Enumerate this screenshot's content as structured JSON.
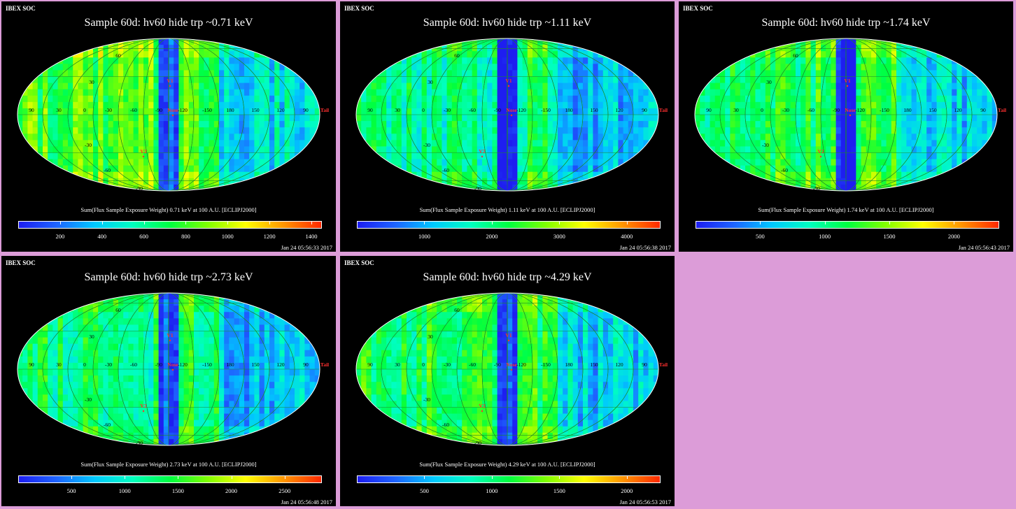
{
  "header": {
    "soc_label": "IBEX SOC"
  },
  "colors": {
    "background": "#dc9cd8",
    "panel_bg": "#000000",
    "label_red": "#ff3030",
    "grid_green": "#1a8a2a"
  },
  "colormap": [
    "#1e1ef0",
    "#1e64ff",
    "#00c8ff",
    "#00ffc0",
    "#00ff40",
    "#80ff00",
    "#ffff00",
    "#ff9600",
    "#ff2800"
  ],
  "map_labels": {
    "v1": "V1",
    "v2": "V2",
    "nose": "Nose",
    "tail": "Tail",
    "lon_labels": [
      "90",
      "30",
      "0",
      "-30",
      "-60",
      "-90",
      "-120",
      "-150",
      "180",
      "150",
      "120",
      "90"
    ],
    "lat_labels": [
      "60",
      "30",
      "-30",
      "-60",
      "-90"
    ]
  },
  "panels": [
    {
      "title": "Sample 60d: hv60 hide trp ~0.71 keV",
      "colorbar_label": "Sum(Flux Sample Exposure Weight)  0.71 keV at 100 A.U. [ECLIPJ2000]",
      "ticks": [
        "200",
        "400",
        "600",
        "800",
        "1000",
        "1200",
        "1400"
      ],
      "tick_values": [
        200,
        400,
        600,
        800,
        1000,
        1200,
        1400
      ],
      "range": [
        0,
        1450
      ],
      "date": "Jan 24 05:56:33 2017",
      "level": 0.55
    },
    {
      "title": "Sample 60d: hv60 hide trp ~1.11 keV",
      "colorbar_label": "Sum(Flux Sample Exposure Weight)  1.11 keV at 100 A.U. [ECLIPJ2000]",
      "ticks": [
        "1000",
        "2000",
        "3000",
        "4000"
      ],
      "tick_values": [
        1000,
        2000,
        3000,
        4000
      ],
      "range": [
        0,
        4500
      ],
      "date": "Jan 24 05:56:38 2017",
      "level": 0.42
    },
    {
      "title": "Sample 60d: hv60 hide trp ~1.74 keV",
      "colorbar_label": "Sum(Flux Sample Exposure Weight)  1.74 keV at 100 A.U. [ECLIPJ2000]",
      "ticks": [
        "500",
        "1000",
        "1500",
        "2000"
      ],
      "tick_values": [
        500,
        1000,
        1500,
        2000
      ],
      "range": [
        0,
        2350
      ],
      "date": "Jan 24 05:56:43 2017",
      "level": 0.5
    },
    {
      "title": "Sample 60d: hv60 hide trp ~2.73 keV",
      "colorbar_label": "Sum(Flux Sample Exposure Weight)  2.73 keV at 100 A.U. [ECLIPJ2000]",
      "ticks": [
        "500",
        "1000",
        "1500",
        "2000",
        "2500"
      ],
      "tick_values": [
        500,
        1000,
        1500,
        2000,
        2500
      ],
      "range": [
        0,
        2850
      ],
      "date": "Jan 24 05:56:48 2017",
      "level": 0.45
    },
    {
      "title": "Sample 60d: hv60 hide trp ~4.29 keV",
      "colorbar_label": "Sum(Flux Sample Exposure Weight)  4.29 keV at 100 A.U. [ECLIPJ2000]",
      "ticks": [
        "500",
        "1000",
        "1500",
        "2000"
      ],
      "tick_values": [
        500,
        1000,
        1500,
        2000
      ],
      "range": [
        0,
        2250
      ],
      "date": "Jan 24 05:56:53 2017",
      "level": 0.5
    }
  ]
}
